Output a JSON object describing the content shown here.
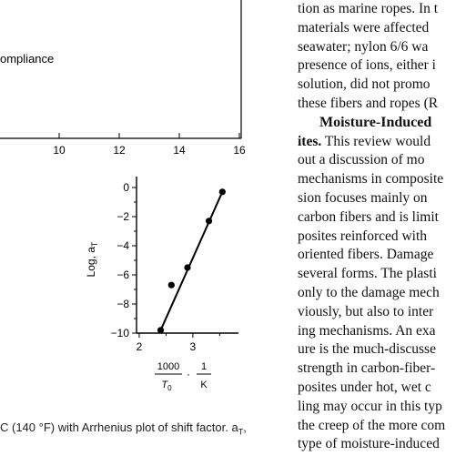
{
  "figure_top": {
    "legend_label": "ompliance",
    "x_ticks": [
      "10",
      "12",
      "14",
      "16"
    ]
  },
  "figure_bottom": {
    "ylabel": "Log, a",
    "ylabel_sub": "T",
    "xlabel_num": "1000",
    "xlabel_den": "T",
    "xlabel_den_sub": "0",
    "xlabel_unit_num": "1",
    "xlabel_unit_den": "K",
    "xlabel_dot": "·"
  },
  "chart_data": {
    "type": "scatter",
    "title": "",
    "xlabel": "1000/T0 · 1/K",
    "ylabel": "Log, aT",
    "xlim": [
      1.95,
      3.85
    ],
    "ylim": [
      -10,
      0.5
    ],
    "x_ticks": [
      "2",
      "3"
    ],
    "y_ticks": [
      "0",
      "−2",
      "−4",
      "−6",
      "−8",
      "−10"
    ],
    "series": [
      {
        "x": [
          2.4,
          2.6,
          2.9,
          3.3,
          3.55
        ],
        "y": [
          -9.8,
          -6.7,
          -5.5,
          -2.3,
          -0.3
        ]
      }
    ],
    "fit_line": {
      "x": [
        2.4,
        3.55
      ],
      "y": [
        -9.8,
        -0.3
      ]
    }
  },
  "caption": "C (140 °F) with Arrhenius plot of shift factor. a",
  "caption_sub": "T",
  "caption_end": ",",
  "column": {
    "lines": [
      "tion as marine ropes. In t",
      "materials were affected",
      "seawater; nylon 6/6 wa",
      "presence of ions, either i",
      "solution, did not promo",
      "these fibers and ropes (R"
    ],
    "heading": "Moisture-Induced",
    "heading_tail": "ites.",
    "lines2_first": " This review would",
    "lines2": [
      "out a discussion of mo",
      "mechanisms in composite",
      "sion focuses mainly on",
      "carbon fibers and is limit",
      "posites reinforced with",
      "oriented fibers. Damage",
      "several forms. The plasti",
      "only to the damage mech",
      "viously, but also to inter",
      "ing mechanisms. An exa",
      "ure is the much-discusse",
      "strength in carbon-fiber-",
      "posites under hot, wet c",
      "ling may occur in this typ",
      "the creep of the more com",
      "type of moisture-induced"
    ]
  }
}
